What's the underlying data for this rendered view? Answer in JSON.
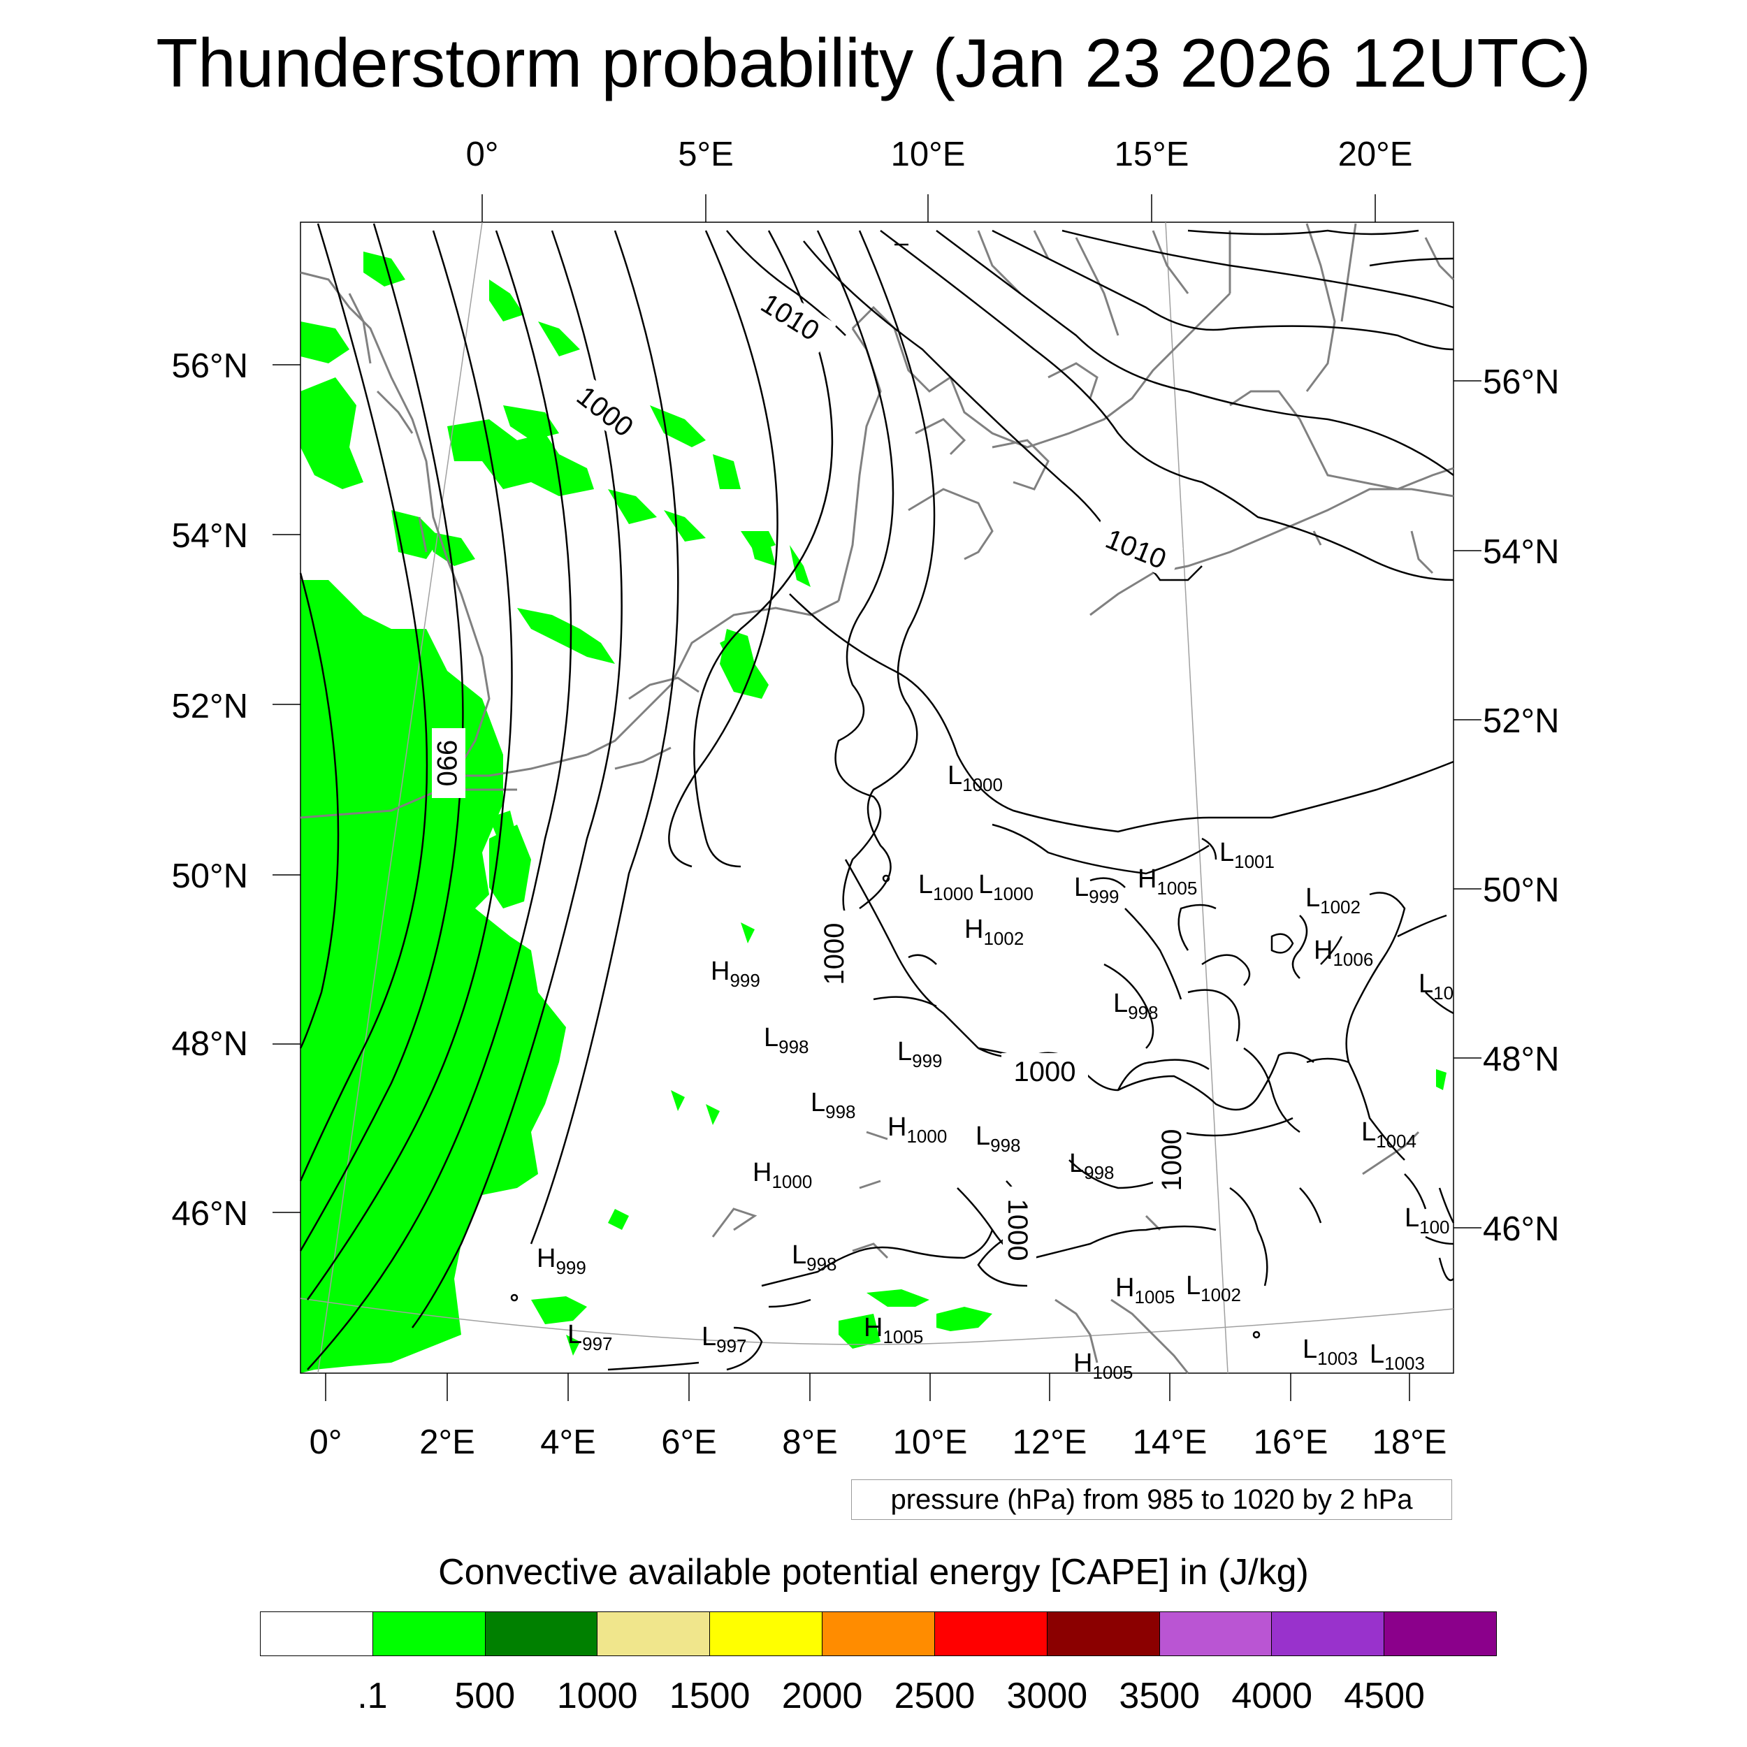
{
  "title": "Thunderstorm probability (Jan 23 2026 12UTC)",
  "top_lon_labels": [
    "0°",
    "5°E",
    "10°E",
    "15°E",
    "20°E"
  ],
  "bottom_lon_labels": [
    "0°",
    "2°E",
    "4°E",
    "6°E",
    "8°E",
    "10°E",
    "12°E",
    "14°E",
    "16°E",
    "18°E"
  ],
  "left_lat_labels": [
    "56°N",
    "54°N",
    "52°N",
    "50°N",
    "48°N",
    "46°N"
  ],
  "right_lat_labels": [
    "56°N",
    "54°N",
    "52°N",
    "50°N",
    "48°N",
    "46°N"
  ],
  "contour_labels": [
    "1010",
    "1000",
    "1010",
    "990",
    "1000",
    "1000",
    "1000",
    "1000"
  ],
  "pressure_centers": [
    {
      "type": "L",
      "value": "1000"
    },
    {
      "type": "L",
      "value": "1001"
    },
    {
      "type": "L",
      "value": "1000"
    },
    {
      "type": "L",
      "value": "1000"
    },
    {
      "type": "L",
      "value": "999"
    },
    {
      "type": "H",
      "value": "1005"
    },
    {
      "type": "L",
      "value": "1002"
    },
    {
      "type": "H",
      "value": "1002"
    },
    {
      "type": "H",
      "value": "1006"
    },
    {
      "type": "L",
      "value": "10"
    },
    {
      "type": "H",
      "value": "999"
    },
    {
      "type": "L",
      "value": "998"
    },
    {
      "type": "L",
      "value": "998"
    },
    {
      "type": "L",
      "value": "999"
    },
    {
      "type": "L",
      "value": "998"
    },
    {
      "type": "H",
      "value": "1000"
    },
    {
      "type": "L",
      "value": "998"
    },
    {
      "type": "L",
      "value": "1004"
    },
    {
      "type": "L",
      "value": "998"
    },
    {
      "type": "H",
      "value": "1000"
    },
    {
      "type": "L",
      "value": "100"
    },
    {
      "type": "H",
      "value": "999"
    },
    {
      "type": "L",
      "value": "998"
    },
    {
      "type": "H",
      "value": "1005"
    },
    {
      "type": "L",
      "value": "1002"
    },
    {
      "type": "L",
      "value": "997"
    },
    {
      "type": "L",
      "value": "997"
    },
    {
      "type": "H",
      "value": "1005"
    },
    {
      "type": "L",
      "value": "1003"
    },
    {
      "type": "L",
      "value": "1003"
    },
    {
      "type": "H",
      "value": "1005"
    }
  ],
  "pressure_note": "pressure (hPa) from 985 to 1020 by 2 hPa",
  "cape_title": "Convective available potential energy [CAPE] in (J/kg)",
  "colorbar": {
    "colors": [
      "#ffffff",
      "#00ff00",
      "#008000",
      "#f0e68c",
      "#ffff00",
      "#ff8c00",
      "#ff0000",
      "#8b0000",
      "#ba55d3",
      "#9932cc",
      "#8b008b"
    ],
    "labels": [
      ".1",
      "500",
      "1000",
      "1500",
      "2000",
      "2500",
      "3000",
      "3500",
      "4000",
      "4500"
    ]
  }
}
